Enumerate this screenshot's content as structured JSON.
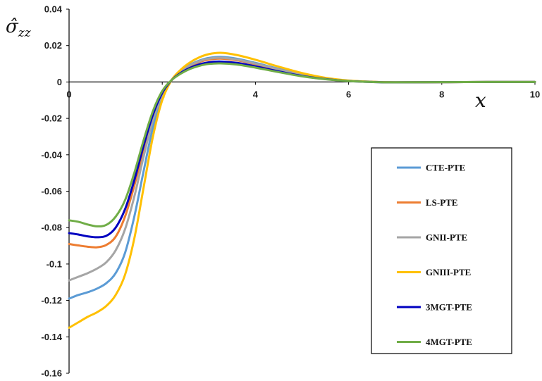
{
  "chart_data": {
    "type": "line",
    "ylabel": "σ̂_zz",
    "xlabel": "x",
    "xlim": [
      0,
      10
    ],
    "ylim": [
      -0.16,
      0.04
    ],
    "x_ticks": [
      "0",
      "2",
      "4",
      "6",
      "8",
      "10"
    ],
    "y_ticks": [
      "0.04",
      "0.02",
      "0",
      "-0.02",
      "-0.04",
      "-0.06",
      "-0.08",
      "-0.1",
      "-0.12",
      "-0.14",
      "-0.16"
    ],
    "grid": false,
    "legend_position": "right",
    "series": [
      {
        "name": "CTE-PTE",
        "color": "#5B9BD5",
        "points": [
          [
            0,
            -0.119
          ],
          [
            0.2,
            -0.117
          ],
          [
            0.4,
            -0.1155
          ],
          [
            0.6,
            -0.1135
          ],
          [
            0.8,
            -0.1105
          ],
          [
            1.0,
            -0.105
          ],
          [
            1.2,
            -0.094
          ],
          [
            1.4,
            -0.074
          ],
          [
            1.6,
            -0.049
          ],
          [
            1.8,
            -0.025
          ],
          [
            2.0,
            -0.008
          ],
          [
            2.2,
            0.001
          ],
          [
            2.4,
            0.006
          ],
          [
            2.6,
            0.0095
          ],
          [
            2.8,
            0.0118
          ],
          [
            3.0,
            0.0132
          ],
          [
            3.25,
            0.0138
          ],
          [
            3.6,
            0.0128
          ],
          [
            4.0,
            0.0105
          ],
          [
            4.5,
            0.0072
          ],
          [
            5.0,
            0.0042
          ],
          [
            5.5,
            0.002
          ],
          [
            6.0,
            0.0007
          ],
          [
            6.5,
            0.0001
          ],
          [
            7.0,
            -0.0002
          ],
          [
            8.0,
            -0.0001
          ],
          [
            9.0,
            0
          ],
          [
            10.0,
            0
          ]
        ]
      },
      {
        "name": "LS-PTE",
        "color": "#ED7D31",
        "points": [
          [
            0,
            -0.089
          ],
          [
            0.2,
            -0.0898
          ],
          [
            0.4,
            -0.0905
          ],
          [
            0.6,
            -0.0908
          ],
          [
            0.8,
            -0.0895
          ],
          [
            1.0,
            -0.085
          ],
          [
            1.2,
            -0.074
          ],
          [
            1.4,
            -0.057
          ],
          [
            1.6,
            -0.037
          ],
          [
            1.8,
            -0.019
          ],
          [
            2.0,
            -0.006
          ],
          [
            2.2,
            0.001
          ],
          [
            2.4,
            0.0055
          ],
          [
            2.6,
            0.0088
          ],
          [
            2.8,
            0.011
          ],
          [
            3.0,
            0.0123
          ],
          [
            3.25,
            0.0128
          ],
          [
            3.6,
            0.0119
          ],
          [
            4.0,
            0.0098
          ],
          [
            4.5,
            0.0066
          ],
          [
            5.0,
            0.0038
          ],
          [
            5.5,
            0.0018
          ],
          [
            6.0,
            0.0006
          ],
          [
            6.5,
            0.0001
          ],
          [
            7.0,
            -0.0002
          ],
          [
            8.0,
            -0.0001
          ],
          [
            9.0,
            0
          ],
          [
            10.0,
            0
          ]
        ]
      },
      {
        "name": "GNII-PTE",
        "color": "#A5A5A5",
        "points": [
          [
            0,
            -0.109
          ],
          [
            0.2,
            -0.107
          ],
          [
            0.4,
            -0.105
          ],
          [
            0.6,
            -0.1025
          ],
          [
            0.8,
            -0.099
          ],
          [
            1.0,
            -0.0925
          ],
          [
            1.2,
            -0.081
          ],
          [
            1.4,
            -0.063
          ],
          [
            1.6,
            -0.041
          ],
          [
            1.8,
            -0.021
          ],
          [
            2.0,
            -0.007
          ],
          [
            2.2,
            0.001
          ],
          [
            2.4,
            0.0058
          ],
          [
            2.6,
            0.0092
          ],
          [
            2.8,
            0.0114
          ],
          [
            3.0,
            0.0128
          ],
          [
            3.25,
            0.0133
          ],
          [
            3.6,
            0.0123
          ],
          [
            4.0,
            0.0101
          ],
          [
            4.5,
            0.0069
          ],
          [
            5.0,
            0.004
          ],
          [
            5.5,
            0.0019
          ],
          [
            6.0,
            0.0006
          ],
          [
            6.5,
            0.0001
          ],
          [
            7.0,
            -0.0002
          ],
          [
            8.0,
            -0.0001
          ],
          [
            9.0,
            0
          ],
          [
            10.0,
            0
          ]
        ]
      },
      {
        "name": "GNIII-PTE",
        "color": "#FFC000",
        "points": [
          [
            0,
            -0.135
          ],
          [
            0.2,
            -0.132
          ],
          [
            0.4,
            -0.129
          ],
          [
            0.6,
            -0.1265
          ],
          [
            0.8,
            -0.123
          ],
          [
            1.0,
            -0.117
          ],
          [
            1.2,
            -0.106
          ],
          [
            1.4,
            -0.086
          ],
          [
            1.6,
            -0.058
          ],
          [
            1.8,
            -0.03
          ],
          [
            2.0,
            -0.01
          ],
          [
            2.2,
            0.001
          ],
          [
            2.4,
            0.0068
          ],
          [
            2.6,
            0.0108
          ],
          [
            2.8,
            0.0136
          ],
          [
            3.0,
            0.0153
          ],
          [
            3.25,
            0.016
          ],
          [
            3.6,
            0.0148
          ],
          [
            4.0,
            0.0122
          ],
          [
            4.5,
            0.0084
          ],
          [
            5.0,
            0.0049
          ],
          [
            5.5,
            0.0023
          ],
          [
            6.0,
            0.0008
          ],
          [
            6.5,
            0.0001
          ],
          [
            7.0,
            -0.0002
          ],
          [
            8.0,
            -0.0001
          ],
          [
            9.0,
            0
          ],
          [
            10.0,
            0
          ]
        ]
      },
      {
        "name": "3MGT-PTE",
        "color": "#0000C0",
        "points": [
          [
            0,
            -0.083
          ],
          [
            0.2,
            -0.0838
          ],
          [
            0.4,
            -0.0848
          ],
          [
            0.6,
            -0.0853
          ],
          [
            0.8,
            -0.0845
          ],
          [
            1.0,
            -0.08
          ],
          [
            1.2,
            -0.07
          ],
          [
            1.4,
            -0.054
          ],
          [
            1.6,
            -0.035
          ],
          [
            1.8,
            -0.018
          ],
          [
            2.0,
            -0.006
          ],
          [
            2.2,
            0.001
          ],
          [
            2.4,
            0.005
          ],
          [
            2.6,
            0.0078
          ],
          [
            2.8,
            0.0097
          ],
          [
            3.0,
            0.0108
          ],
          [
            3.25,
            0.0112
          ],
          [
            3.6,
            0.0105
          ],
          [
            4.0,
            0.0086
          ],
          [
            4.5,
            0.0058
          ],
          [
            5.0,
            0.0033
          ],
          [
            5.5,
            0.0016
          ],
          [
            6.0,
            0.0005
          ],
          [
            6.5,
            0
          ],
          [
            7.0,
            -0.0002
          ],
          [
            8.0,
            -0.0001
          ],
          [
            9.0,
            0
          ],
          [
            10.0,
            0
          ]
        ]
      },
      {
        "name": "4MGT-PTE",
        "color": "#70AD47",
        "points": [
          [
            0,
            -0.076
          ],
          [
            0.2,
            -0.0768
          ],
          [
            0.4,
            -0.0783
          ],
          [
            0.6,
            -0.0793
          ],
          [
            0.8,
            -0.0785
          ],
          [
            1.0,
            -0.074
          ],
          [
            1.2,
            -0.065
          ],
          [
            1.4,
            -0.05
          ],
          [
            1.6,
            -0.032
          ],
          [
            1.8,
            -0.016
          ],
          [
            2.0,
            -0.005
          ],
          [
            2.2,
            0.001
          ],
          [
            2.4,
            0.0046
          ],
          [
            2.6,
            0.0072
          ],
          [
            2.8,
            0.0089
          ],
          [
            3.0,
            0.0099
          ],
          [
            3.25,
            0.0102
          ],
          [
            3.6,
            0.0096
          ],
          [
            4.0,
            0.0079
          ],
          [
            4.5,
            0.0054
          ],
          [
            5.0,
            0.0031
          ],
          [
            5.5,
            0.0015
          ],
          [
            6.0,
            0.0005
          ],
          [
            6.5,
            0
          ],
          [
            7.0,
            -0.0002
          ],
          [
            8.0,
            -0.0001
          ],
          [
            9.0,
            0
          ],
          [
            10.0,
            0
          ]
        ]
      }
    ]
  }
}
